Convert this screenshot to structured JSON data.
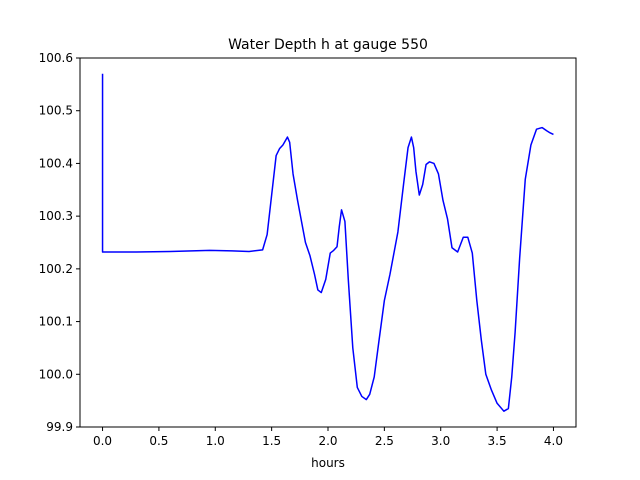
{
  "chart_data": {
    "type": "line",
    "title": "Water Depth h at gauge 550",
    "xlabel": "hours",
    "ylabel": "",
    "xlim": [
      -0.2,
      4.2
    ],
    "ylim": [
      99.9,
      100.6
    ],
    "xticks": [
      0.0,
      0.5,
      1.0,
      1.5,
      2.0,
      2.5,
      3.0,
      3.5,
      4.0
    ],
    "xtick_labels": [
      "0.0",
      "0.5",
      "1.0",
      "1.5",
      "2.0",
      "2.5",
      "3.0",
      "3.5",
      "4.0"
    ],
    "yticks": [
      99.9,
      100.0,
      100.1,
      100.2,
      100.3,
      100.4,
      100.5,
      100.6
    ],
    "ytick_labels": [
      "99.9",
      "100.0",
      "100.1",
      "100.2",
      "100.3",
      "100.4",
      "100.5",
      "100.6"
    ],
    "grid": false,
    "line_color": "#0000ff",
    "series": [
      {
        "x": [
          0.0,
          0.0,
          0.01,
          0.3,
          0.6,
          0.95,
          1.15,
          1.3,
          1.42,
          1.46,
          1.5,
          1.54,
          1.57,
          1.6,
          1.64,
          1.66,
          1.69,
          1.73,
          1.8,
          1.84,
          1.88,
          1.91,
          1.94,
          1.98,
          2.02,
          2.05,
          2.08,
          2.1,
          2.12,
          2.15,
          2.18,
          2.22,
          2.26,
          2.3,
          2.34,
          2.37,
          2.41,
          2.45,
          2.5,
          2.55,
          2.62,
          2.67,
          2.71,
          2.74,
          2.76,
          2.78,
          2.81,
          2.84,
          2.87,
          2.9,
          2.94,
          2.98,
          3.02,
          3.06,
          3.1,
          3.15,
          3.2,
          3.24,
          3.28,
          3.3,
          3.32,
          3.36,
          3.4,
          3.45,
          3.5,
          3.56,
          3.6,
          3.63,
          3.66,
          3.7,
          3.75,
          3.8,
          3.85,
          3.9,
          3.94,
          3.97,
          4.0
        ],
        "y": [
          100.57,
          100.232,
          100.232,
          100.232,
          100.233,
          100.235,
          100.234,
          100.233,
          100.236,
          100.265,
          100.34,
          100.415,
          100.428,
          100.435,
          100.45,
          100.44,
          100.38,
          100.33,
          100.25,
          100.225,
          100.19,
          100.16,
          100.155,
          100.18,
          100.23,
          100.235,
          100.242,
          100.28,
          100.312,
          100.29,
          100.18,
          100.05,
          99.975,
          99.958,
          99.952,
          99.962,
          99.995,
          100.06,
          100.14,
          100.19,
          100.27,
          100.36,
          100.43,
          100.45,
          100.43,
          100.385,
          100.34,
          100.36,
          100.398,
          100.403,
          100.4,
          100.38,
          100.33,
          100.295,
          100.24,
          100.232,
          100.26,
          100.26,
          100.23,
          100.185,
          100.14,
          100.065,
          100.0,
          99.97,
          99.945,
          99.93,
          99.935,
          99.995,
          100.08,
          100.22,
          100.37,
          100.435,
          100.465,
          100.468,
          100.462,
          100.458,
          100.455
        ]
      }
    ]
  }
}
